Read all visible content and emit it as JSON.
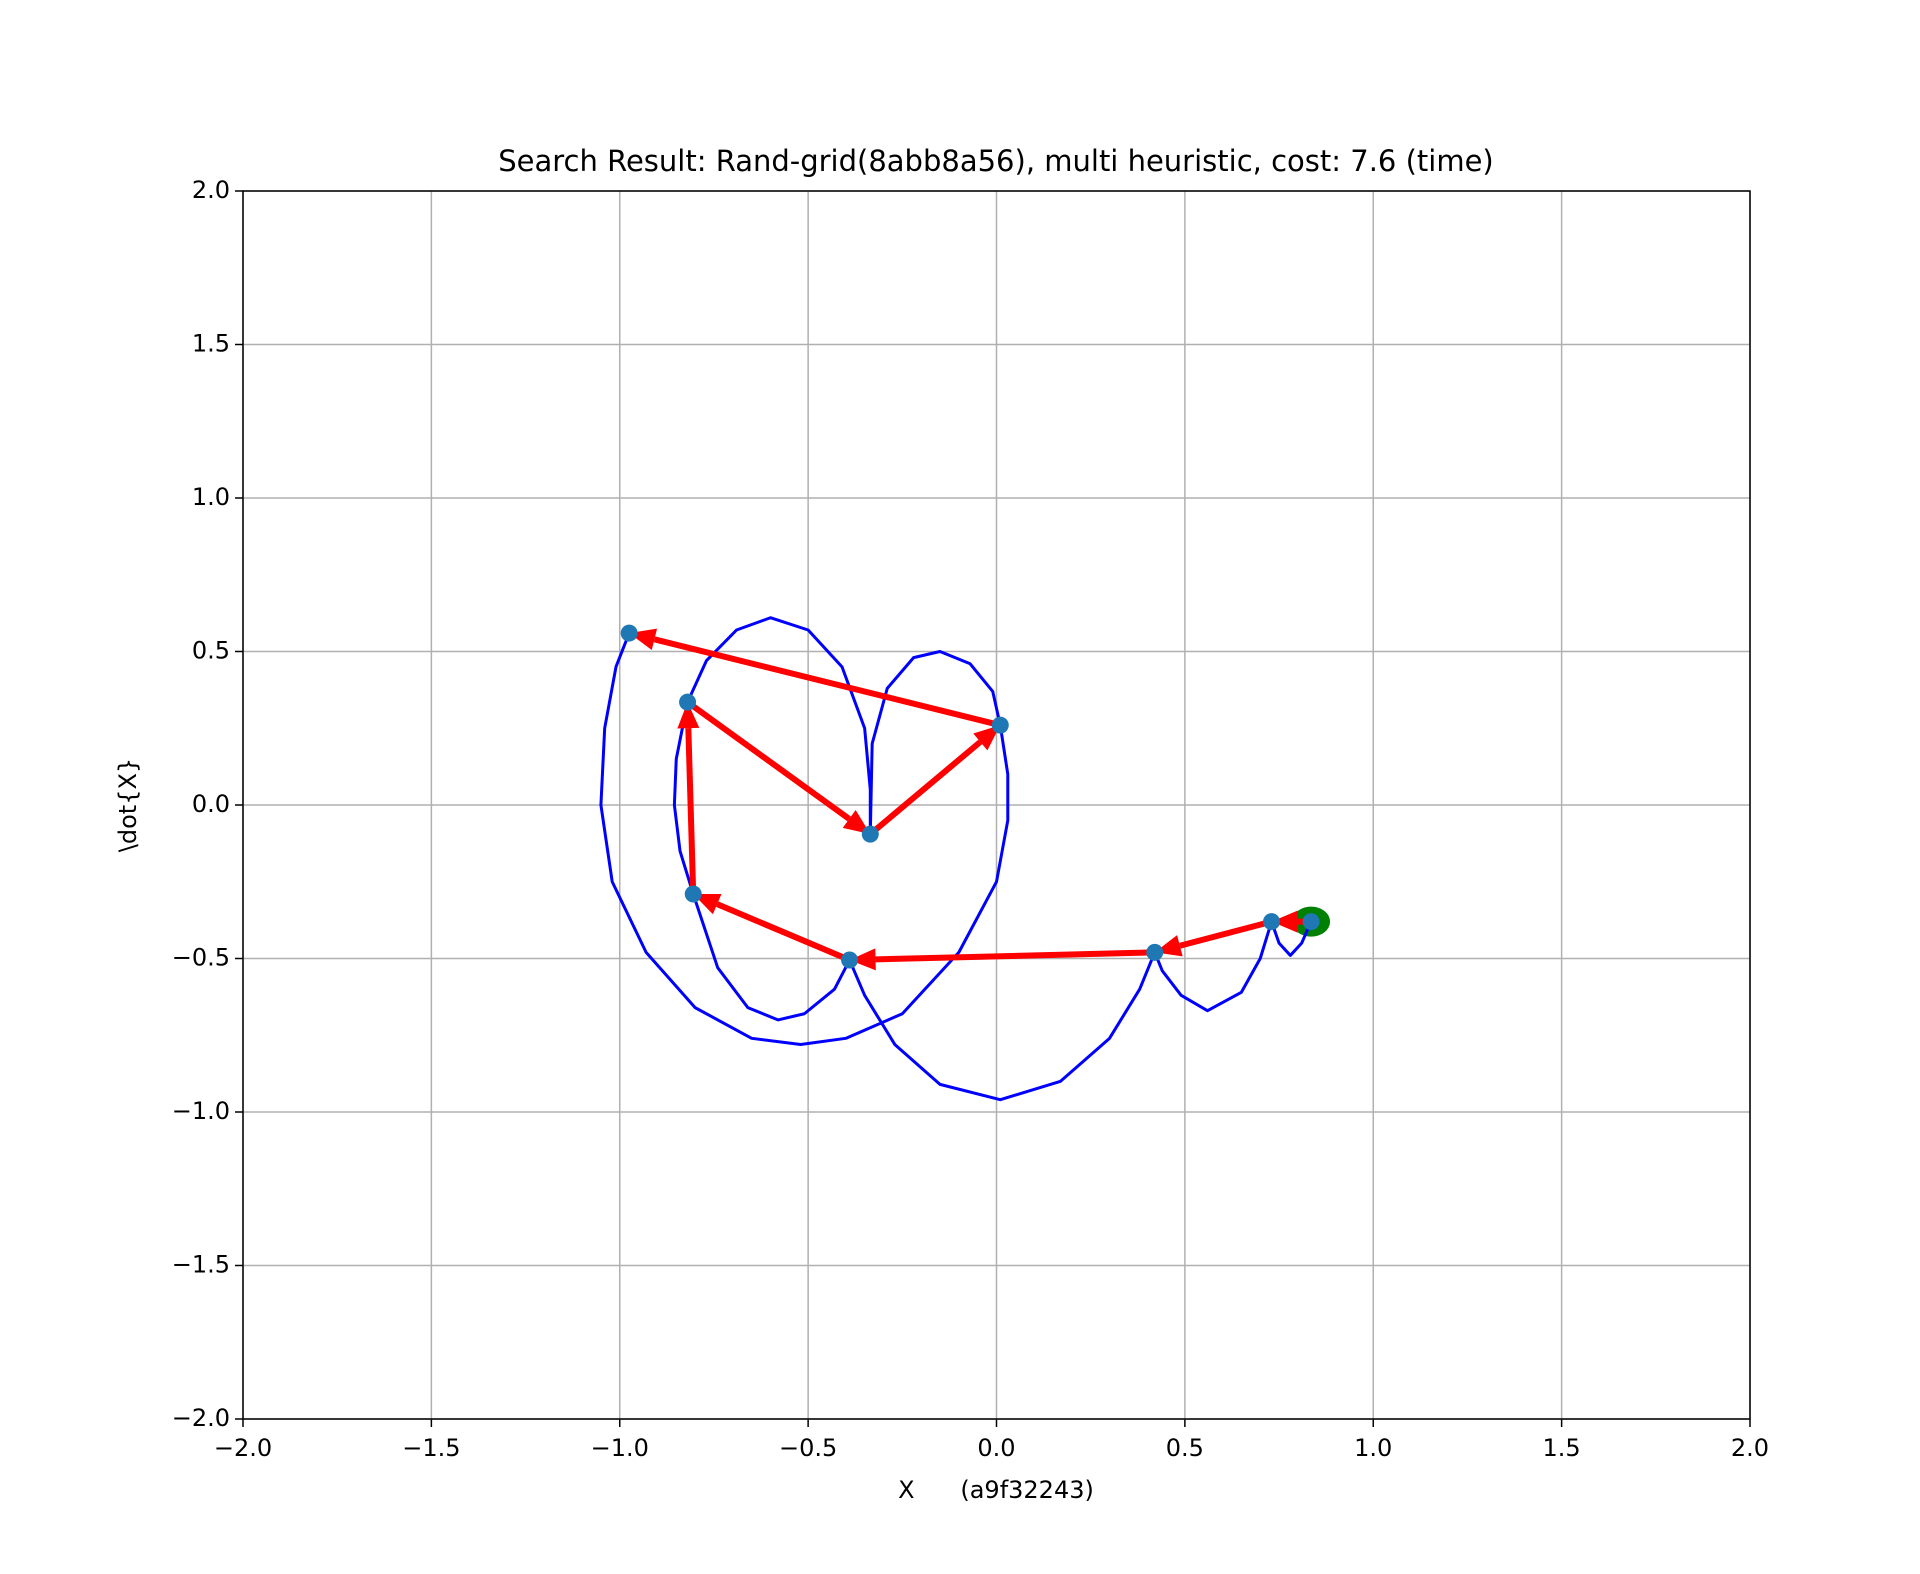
{
  "chart_data": {
    "type": "scatter",
    "title": "Search Result: Rand-grid(8abb8a56), multi heuristic, cost: 7.6 (time)",
    "xlabel": "X      (a9f32243)",
    "ylabel": "\\dot{X}",
    "xlim": [
      -2.0,
      2.0
    ],
    "ylim": [
      -2.0,
      2.0
    ],
    "xticks": [
      {
        "value": -2.0,
        "label": "−2.0"
      },
      {
        "value": -1.5,
        "label": "−1.5"
      },
      {
        "value": -1.0,
        "label": "−1.0"
      },
      {
        "value": -0.5,
        "label": "−0.5"
      },
      {
        "value": 0.0,
        "label": "0.0"
      },
      {
        "value": 0.5,
        "label": "0.5"
      },
      {
        "value": 1.0,
        "label": "1.0"
      },
      {
        "value": 1.5,
        "label": "1.5"
      },
      {
        "value": 2.0,
        "label": "2.0"
      }
    ],
    "yticks": [
      {
        "value": -2.0,
        "label": "−2.0"
      },
      {
        "value": -1.5,
        "label": "−1.5"
      },
      {
        "value": -1.0,
        "label": "−1.0"
      },
      {
        "value": -0.5,
        "label": "−0.5"
      },
      {
        "value": 0.0,
        "label": "0.0"
      },
      {
        "value": 0.5,
        "label": "0.5"
      },
      {
        "value": 1.0,
        "label": "1.0"
      },
      {
        "value": 1.5,
        "label": "1.5"
      },
      {
        "value": 2.0,
        "label": "2.0"
      }
    ],
    "grid": true,
    "trajectory": {
      "color": "#0000ff",
      "x": [
        0.835,
        0.81,
        0.78,
        0.75,
        0.73,
        0.7,
        0.65,
        0.56,
        0.49,
        0.44,
        0.42,
        0.38,
        0.3,
        0.17,
        0.01,
        -0.15,
        -0.27,
        -0.35,
        -0.39,
        -0.43,
        -0.51,
        -0.58,
        -0.66,
        -0.74,
        -0.805,
        -0.84,
        -0.855,
        -0.85,
        -0.82,
        -0.77,
        -0.69,
        -0.6,
        -0.5,
        -0.41,
        -0.35,
        -0.335,
        -0.335,
        -0.33,
        -0.29,
        -0.22,
        -0.15,
        -0.07,
        -0.01,
        0.01,
        0.03,
        0.03,
        0.0,
        -0.1,
        -0.25,
        -0.4,
        -0.52,
        -0.65,
        -0.8,
        -0.93,
        -1.02,
        -1.05,
        -1.04,
        -1.01,
        -0.975
      ],
      "y": [
        -0.38,
        -0.45,
        -0.49,
        -0.45,
        -0.38,
        -0.5,
        -0.61,
        -0.67,
        -0.62,
        -0.54,
        -0.48,
        -0.6,
        -0.76,
        -0.9,
        -0.96,
        -0.91,
        -0.78,
        -0.62,
        -0.505,
        -0.6,
        -0.68,
        -0.7,
        -0.66,
        -0.53,
        -0.29,
        -0.15,
        0.0,
        0.15,
        0.335,
        0.47,
        0.57,
        0.61,
        0.57,
        0.45,
        0.25,
        0.05,
        -0.095,
        0.2,
        0.38,
        0.48,
        0.5,
        0.46,
        0.37,
        0.26,
        0.1,
        -0.05,
        -0.25,
        -0.48,
        -0.68,
        -0.76,
        -0.78,
        -0.76,
        -0.66,
        -0.48,
        -0.25,
        0.0,
        0.25,
        0.45,
        0.56
      ]
    },
    "nodes": {
      "color": "#1f77b4",
      "x": [
        0.835,
        0.73,
        0.42,
        -0.39,
        -0.805,
        -0.82,
        -0.335,
        0.01,
        -0.975
      ],
      "y": [
        -0.38,
        -0.38,
        -0.48,
        -0.505,
        -0.29,
        0.335,
        -0.095,
        0.26,
        0.56
      ]
    },
    "arrow_color": "#ff0000",
    "goal": {
      "x": 0.835,
      "y": -0.38,
      "color": "#008000"
    }
  }
}
